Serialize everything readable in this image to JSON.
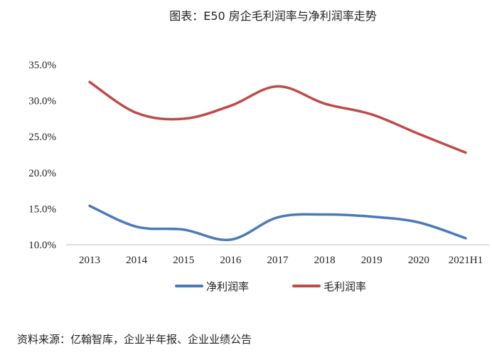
{
  "chart_data": {
    "type": "line",
    "title": "图表：E50 房企毛利润率与净利润率走势",
    "categories": [
      "2013",
      "2014",
      "2015",
      "2016",
      "2017",
      "2018",
      "2019",
      "2020",
      "2021H1"
    ],
    "y_ticks": [
      "10.0%",
      "15.0%",
      "20.0%",
      "25.0%",
      "30.0%",
      "35.0%"
    ],
    "ylim": [
      10,
      35
    ],
    "unit": "%",
    "grid": false,
    "legend_position": "bottom",
    "series": [
      {
        "name": "净利润率",
        "color": "#4a7ab8",
        "values": [
          15.4,
          12.5,
          12.1,
          10.7,
          13.8,
          14.2,
          13.9,
          13.1,
          10.9
        ]
      },
      {
        "name": "毛利润率",
        "color": "#be4b48",
        "values": [
          32.6,
          28.3,
          27.5,
          29.3,
          32.0,
          29.6,
          28.1,
          25.4,
          22.8
        ]
      }
    ]
  },
  "source": "资料来源：亿翰智库，企业半年报、企业业绩公告"
}
